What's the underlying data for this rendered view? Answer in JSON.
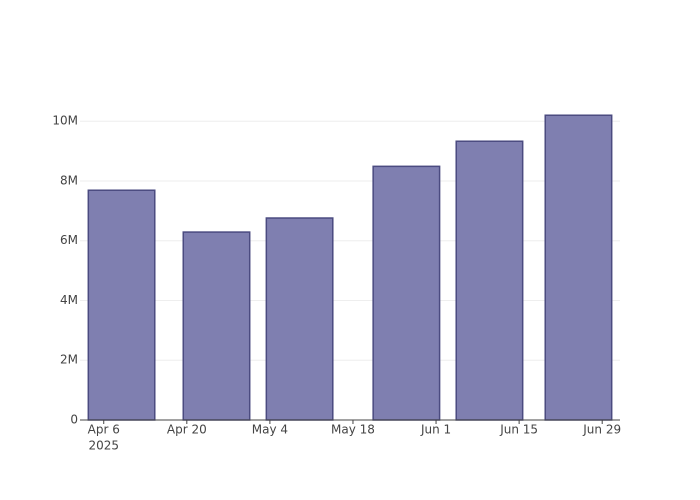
{
  "chart_data": {
    "type": "bar",
    "x": [
      "2025-04-09",
      "2025-04-25",
      "2025-05-09",
      "2025-05-27",
      "2025-06-10",
      "2025-06-25"
    ],
    "values": [
      7690000,
      6290000,
      6760000,
      8490000,
      9330000,
      10200000
    ],
    "color": "#7f7fb0",
    "edge_color": "#4b4b80",
    "xlim": [
      "2025-04-02",
      "2025-07-02"
    ],
    "xticks": [
      {
        "value": "2025-04-06",
        "label": "Apr 6"
      },
      {
        "value": "2025-04-20",
        "label": "Apr 20"
      },
      {
        "value": "2025-05-04",
        "label": "May 4"
      },
      {
        "value": "2025-05-18",
        "label": "May 18"
      },
      {
        "value": "2025-06-01",
        "label": "Jun 1"
      },
      {
        "value": "2025-06-15",
        "label": "Jun 15"
      },
      {
        "value": "2025-06-29",
        "label": "Jun 29"
      }
    ],
    "x_year_label": "2025",
    "ylim": [
      0,
      10710000
    ],
    "yticks": [
      0,
      {
        "value": 2000000,
        "label": "2M"
      },
      {
        "value": 4000000,
        "label": "4M"
      },
      {
        "value": 6000000,
        "label": "6M"
      },
      {
        "value": 8000000,
        "label": "8M"
      },
      {
        "value": 10000000,
        "label": "10M"
      }
    ],
    "grid": true
  }
}
